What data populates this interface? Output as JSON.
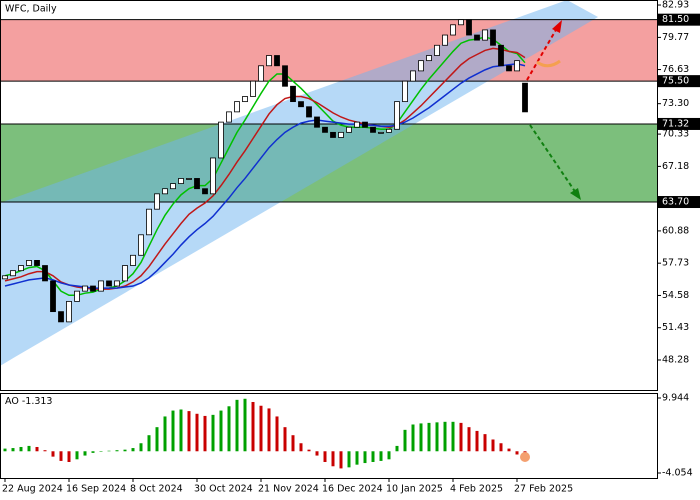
{
  "chart_data": [
    {
      "type": "candlestick",
      "title": "WFC, Daily",
      "open": [
        56.2,
        56.5,
        57,
        57.5,
        58,
        57.5,
        56,
        53,
        52,
        54,
        55,
        55.5,
        55,
        56,
        55.5,
        56,
        57.5,
        58.5,
        60.5,
        63,
        64.5,
        65,
        65.5,
        66,
        66,
        65,
        64.5,
        68,
        71.5,
        72.5,
        73.5,
        74,
        75.5,
        77,
        78,
        77,
        75,
        73.5,
        73,
        72,
        71,
        70.5,
        70,
        70.5,
        71,
        71.5,
        71,
        70.5,
        70.5,
        70.8,
        73.5,
        75.5,
        76.5,
        77.5,
        78,
        79,
        80,
        81,
        81.5,
        80,
        79.5,
        80.5,
        79,
        77,
        76.5,
        75.3
      ],
      "close": [
        56.5,
        57,
        57.5,
        58,
        57.5,
        56,
        53,
        52,
        54,
        55,
        55.5,
        55,
        56,
        55.5,
        56,
        57.5,
        58.5,
        60.5,
        63,
        64.5,
        65,
        65.5,
        66,
        66,
        65,
        64.5,
        68,
        71.5,
        72.5,
        73.5,
        74,
        75.5,
        77,
        78,
        77,
        75,
        73.5,
        73,
        72,
        71,
        70.5,
        70,
        70.5,
        71,
        71.5,
        71,
        70.5,
        70.5,
        70.8,
        73.5,
        75.5,
        76.5,
        77.5,
        78,
        79,
        80,
        81,
        81.5,
        80,
        79.5,
        80.5,
        79,
        77,
        76.5,
        77.5,
        72.5
      ],
      "up_color": "#ffffff",
      "down_color": "#000000",
      "series": [
        {
          "color": "#00c000",
          "values": [
            56.5,
            56.7,
            57,
            57.3,
            57.4,
            57,
            56,
            55,
            54.6,
            54.6,
            54.8,
            54.9,
            55.2,
            55.3,
            55.5,
            56,
            56.7,
            57.8,
            59.4,
            61,
            62.4,
            63.5,
            64.4,
            65,
            65.3,
            65.3,
            66,
            67.5,
            69,
            70.5,
            71.7,
            73,
            74.3,
            75.5,
            76.2,
            76.2,
            75.5,
            74.8,
            74,
            73.2,
            72.4,
            71.6,
            71.2,
            71,
            71,
            71,
            70.9,
            70.8,
            70.8,
            71.4,
            72.5,
            73.6,
            74.7,
            75.7,
            76.6,
            77.5,
            78.4,
            79.2,
            79.5,
            79.6,
            79.8,
            79.6,
            79,
            78.4,
            78.2,
            77.3
          ]
        },
        {
          "color": "#c01818",
          "values": [
            56,
            56.2,
            56.4,
            56.7,
            56.9,
            56.9,
            56.5,
            55.9,
            55.6,
            55.4,
            55.3,
            55.2,
            55.2,
            55.2,
            55.3,
            55.5,
            55.9,
            56.5,
            57.4,
            58.5,
            59.6,
            60.6,
            61.6,
            62.5,
            63.1,
            63.6,
            64.3,
            65.3,
            66.4,
            67.6,
            68.7,
            69.9,
            71.1,
            72.3,
            73.2,
            73.8,
            74,
            74,
            73.8,
            73.4,
            72.9,
            72.4,
            72,
            71.7,
            71.5,
            71.3,
            71.2,
            71.1,
            71,
            71.2,
            71.7,
            72.4,
            73.1,
            73.9,
            74.7,
            75.5,
            76.3,
            77.1,
            77.7,
            78.1,
            78.5,
            78.7,
            78.6,
            78.4,
            78.3,
            77.8
          ]
        },
        {
          "color": "#1030d0",
          "values": [
            55.5,
            55.7,
            55.9,
            56.1,
            56.2,
            56.3,
            56.1,
            55.8,
            55.6,
            55.5,
            55.4,
            55.3,
            55.3,
            55.3,
            55.3,
            55.4,
            55.5,
            55.8,
            56.3,
            57,
            57.8,
            58.6,
            59.5,
            60.3,
            61,
            61.6,
            62.3,
            63.2,
            64.1,
            65.1,
            66,
            67,
            68,
            69,
            69.8,
            70.5,
            71,
            71.4,
            71.6,
            71.7,
            71.6,
            71.5,
            71.4,
            71.3,
            71.3,
            71.2,
            71.2,
            71.1,
            71.1,
            71.2,
            71.5,
            71.9,
            72.4,
            72.9,
            73.5,
            74.1,
            74.7,
            75.3,
            75.8,
            76.2,
            76.6,
            76.9,
            77,
            77.1,
            77.2,
            77
          ]
        }
      ],
      "ylim": [
        45.35,
        83.42
      ],
      "yticks": [
        82.93,
        79.77,
        76.63,
        {
          "value": 73.3,
          "label": "73.30"
        },
        70.33,
        67.18,
        60.88,
        57.73,
        54.58,
        51.43,
        48.28
      ],
      "levels": [
        {
          "value": 81.5,
          "label": "81.50"
        },
        {
          "value": 75.5,
          "label": "75.50"
        },
        {
          "value": 71.32,
          "label": "71.32"
        },
        {
          "value": 63.7,
          "label": "63.70"
        }
      ]
    },
    {
      "type": "bar",
      "title": "AO",
      "values": [
        0.5,
        0.6,
        0.8,
        1,
        0.8,
        0.2,
        -1,
        -1.8,
        -2,
        -1.5,
        -0.8,
        -0.3,
        0,
        0.1,
        0.2,
        0.3,
        0.6,
        1.5,
        3,
        4.5,
        6.5,
        7.6,
        7.8,
        7.5,
        7,
        6.6,
        6.8,
        7.6,
        8.4,
        9.6,
        9.8,
        9.2,
        8.5,
        8,
        6.5,
        4.5,
        3,
        1.5,
        0.3,
        -0.8,
        -2,
        -2.8,
        -3.2,
        -3,
        -2.5,
        -2.2,
        -2,
        -1.8,
        -1.5,
        1,
        4,
        5,
        5.2,
        5.3,
        5.4,
        5.5,
        5.5,
        5.3,
        4.5,
        3.8,
        3.2,
        2.2,
        1.5,
        0.5,
        -0.6,
        -1.313
      ],
      "up_color": "#00a000",
      "down_color": "#c80000",
      "ylim": [
        -4.99,
        10.88
      ],
      "yticks": [
        9.944,
        -4.054
      ],
      "categories": [
        "22 Aug 2024",
        null,
        null,
        null,
        null,
        null,
        null,
        null,
        "16 Sep 2024",
        null,
        null,
        null,
        null,
        null,
        null,
        null,
        "8 Oct 2024",
        null,
        null,
        null,
        null,
        null,
        null,
        null,
        "30 Oct 2024",
        null,
        null,
        null,
        null,
        null,
        null,
        null,
        "21 Nov 2024",
        null,
        null,
        null,
        null,
        null,
        null,
        null,
        "16 Dec 2024",
        null,
        null,
        null,
        null,
        null,
        null,
        null,
        "10 Jan 2025",
        null,
        null,
        null,
        null,
        null,
        null,
        null,
        "4 Feb 2025",
        null,
        null,
        null,
        null,
        null,
        null,
        null,
        "27 Feb 2025",
        null
      ]
    }
  ]
}
